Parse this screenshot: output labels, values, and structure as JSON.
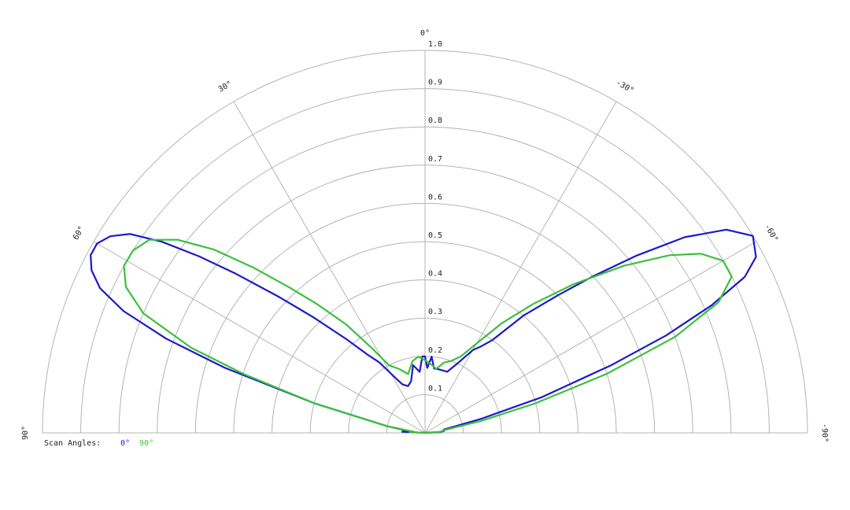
{
  "chart_data": {
    "type": "polar",
    "ylim": [
      0,
      1
    ],
    "yticks": [
      0.1,
      0.2,
      0.3,
      0.4,
      0.5,
      0.6,
      0.7,
      0.8,
      0.9,
      {
        "value": 1,
        "label": "1.0"
      }
    ],
    "xlim": [
      -90,
      90
    ],
    "xticks": [
      {
        "value": 90,
        "label": "90°"
      },
      {
        "value": 60,
        "label": "60°"
      },
      {
        "value": 30,
        "label": "30°"
      },
      {
        "value": 0,
        "label": "0°"
      },
      {
        "value": -30,
        "label": "-30°"
      },
      {
        "value": -60,
        "label": "-60°"
      },
      {
        "value": -90,
        "label": "-90°"
      }
    ],
    "legend_title": "Scan Angles:",
    "series": [
      {
        "name": "0°",
        "color": "#1a1acc",
        "x": [
          90,
          87,
          84,
          80,
          75,
          72,
          70,
          68,
          66,
          64,
          62,
          60,
          58,
          56,
          54,
          52,
          50,
          47,
          44,
          40,
          36,
          33,
          30,
          25,
          20,
          15,
          10,
          5,
          2,
          0,
          -2,
          -5,
          -8,
          -12,
          -20,
          -25,
          -30,
          -33,
          -36,
          -40,
          -44,
          -47,
          -50,
          -53,
          -56,
          -59,
          -62,
          -64,
          -66,
          -68,
          -70,
          -73,
          -76,
          -80,
          -84,
          -87,
          -90
        ],
        "values": [
          0,
          0.06,
          0.04,
          0.1,
          0.3,
          0.55,
          0.72,
          0.85,
          0.93,
          0.97,
          0.99,
          0.99,
          0.97,
          0.93,
          0.85,
          0.75,
          0.65,
          0.52,
          0.42,
          0.32,
          0.25,
          0.22,
          0.18,
          0.14,
          0.13,
          0.14,
          0.18,
          0.16,
          0.2,
          0.2,
          0.17,
          0.2,
          0.17,
          0.17,
          0.17,
          0.2,
          0.25,
          0.27,
          0.3,
          0.4,
          0.5,
          0.6,
          0.72,
          0.85,
          0.95,
          1.0,
          0.98,
          0.93,
          0.82,
          0.68,
          0.52,
          0.32,
          0.15,
          0.05,
          0.05,
          0.04,
          0
        ]
      },
      {
        "name": "90°",
        "color": "#3cc03c",
        "x": [
          90,
          87,
          84,
          80,
          75,
          72,
          70,
          67,
          64,
          61,
          58,
          55,
          52,
          49,
          46,
          43,
          40,
          36,
          32,
          28,
          22,
          16,
          10,
          5,
          0,
          -5,
          -10,
          -15,
          -20,
          -25,
          -30,
          -35,
          -40,
          -45,
          -50,
          -54,
          -57,
          -60,
          -63,
          -66,
          -69,
          -72,
          -75,
          -78,
          -82,
          -86,
          -90
        ],
        "values": [
          0,
          0.04,
          0.03,
          0.1,
          0.3,
          0.5,
          0.65,
          0.8,
          0.87,
          0.9,
          0.9,
          0.88,
          0.82,
          0.73,
          0.62,
          0.52,
          0.44,
          0.35,
          0.26,
          0.2,
          0.18,
          0.16,
          0.19,
          0.2,
          0.19,
          0.18,
          0.17,
          0.19,
          0.2,
          0.22,
          0.27,
          0.35,
          0.44,
          0.55,
          0.68,
          0.79,
          0.86,
          0.9,
          0.9,
          0.84,
          0.7,
          0.5,
          0.3,
          0.15,
          0.05,
          0.04,
          0
        ]
      }
    ]
  }
}
